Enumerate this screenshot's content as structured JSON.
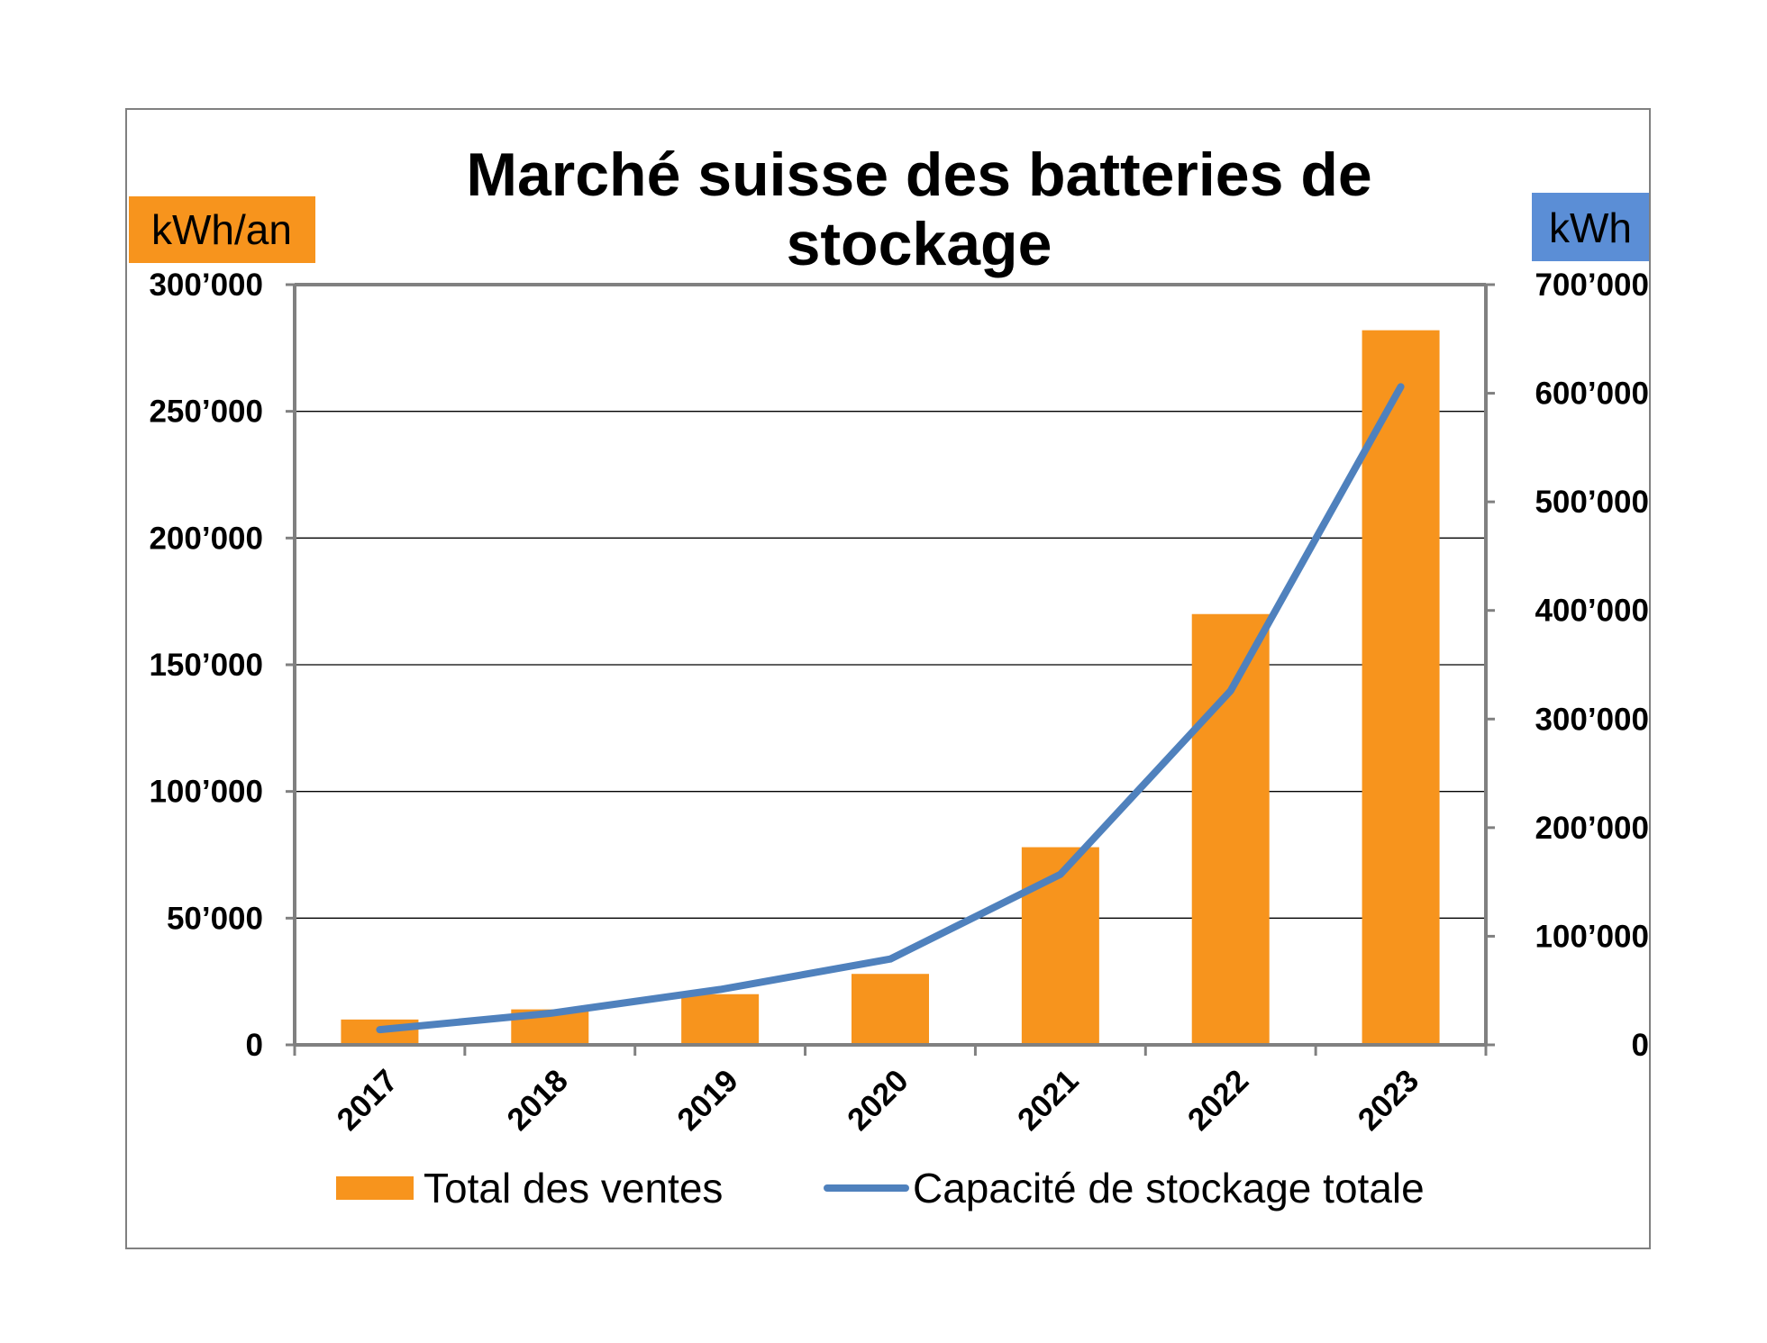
{
  "chart_data": {
    "type": "bar",
    "title": "Marché suisse des batteries de stockage",
    "title_lines": [
      "Marché suisse des batteries de",
      "stockage"
    ],
    "categories": [
      "2017",
      "2018",
      "2019",
      "2020",
      "2021",
      "2022",
      "2023"
    ],
    "left_axis": {
      "unit_label": "kWh/an",
      "unit_label_color": "#F7941D",
      "ylim": [
        0,
        300000
      ],
      "ticks": [
        0,
        50000,
        100000,
        150000,
        200000,
        250000,
        300000
      ],
      "tick_labels": [
        "0",
        "50’000",
        "100’000",
        "150’000",
        "200’000",
        "250’000",
        "300’000"
      ]
    },
    "right_axis": {
      "unit_label": "kWh",
      "unit_label_color": "#5B8ED6",
      "ylim": [
        0,
        700000
      ],
      "ticks": [
        0,
        100000,
        200000,
        300000,
        400000,
        500000,
        600000,
        700000
      ],
      "tick_labels": [
        "0",
        "100’000",
        "200’000",
        "300’000",
        "400’000",
        "500’000",
        "600’000",
        "700’000"
      ]
    },
    "series": [
      {
        "name": "Total des ventes",
        "type": "bar",
        "axis": "left",
        "color": "#F7941D",
        "values": [
          10000,
          14000,
          20000,
          28000,
          78000,
          170000,
          282000
        ]
      },
      {
        "name": "Capacité de stockage totale",
        "type": "line",
        "axis": "right",
        "color": "#4F81BD",
        "values": [
          14000,
          29000,
          51000,
          79000,
          157000,
          326000,
          606000
        ]
      }
    ],
    "grid": true,
    "legend_position": "bottom"
  }
}
